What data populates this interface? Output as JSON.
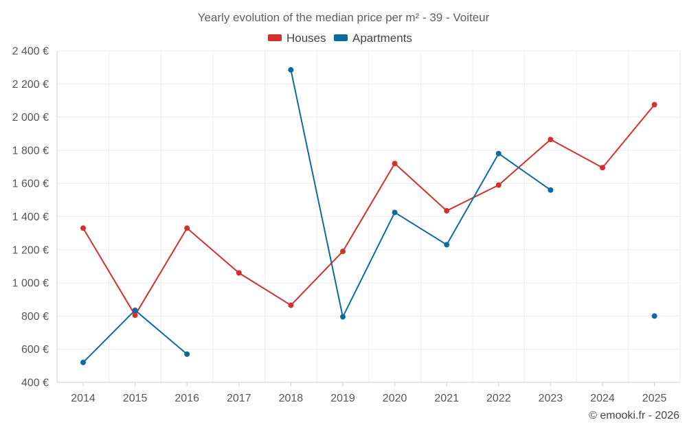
{
  "chart_data": {
    "type": "line",
    "title": "Yearly evolution of the median price per m² - 39 - Voiteur",
    "categories": [
      "2014",
      "2015",
      "2016",
      "2017",
      "2018",
      "2019",
      "2020",
      "2021",
      "2022",
      "2023",
      "2024",
      "2025"
    ],
    "series": [
      {
        "name": "Houses",
        "color": "#d32f2f",
        "values": [
          1330,
          805,
          1330,
          1060,
          865,
          1190,
          1720,
          1435,
          1590,
          1865,
          1695,
          2075
        ]
      },
      {
        "name": "Apartments",
        "color": "#0d6aa1",
        "values": [
          520,
          835,
          570,
          null,
          2285,
          795,
          1425,
          1230,
          1780,
          1560,
          null,
          800
        ]
      }
    ],
    "ylim": [
      400,
      2400
    ],
    "yticks": [
      400,
      600,
      800,
      1000,
      1200,
      1400,
      1600,
      1800,
      2000,
      2200,
      2400
    ],
    "ytick_labels": [
      "400 €",
      "600 €",
      "800 €",
      "1 000 €",
      "1 200 €",
      "1 400 €",
      "1 600 €",
      "1 800 €",
      "2 000 €",
      "2 200 €",
      "2 400 €"
    ],
    "xlabel": "",
    "ylabel": "",
    "grid": true,
    "legend": "top-center"
  },
  "credit": "© emooki.fr - 2026"
}
